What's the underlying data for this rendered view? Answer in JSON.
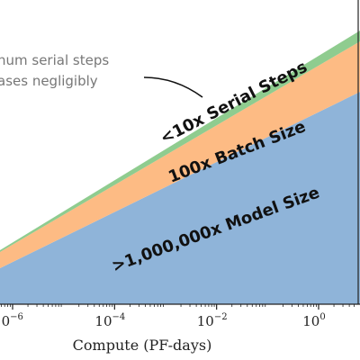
{
  "chart_data": {
    "type": "area",
    "xlabel": "Compute (PF-days)",
    "x_scale": "log",
    "x_ticks": [
      {
        "base": "10",
        "exp": "−6",
        "value": 1e-06
      },
      {
        "base": "10",
        "exp": "−4",
        "value": 0.0001
      },
      {
        "base": "10",
        "exp": "−2",
        "value": 0.01
      },
      {
        "base": "10",
        "exp": "0",
        "value": 1
      }
    ],
    "colors": {
      "model_size": "#8fb4d9",
      "batch_size": "#fdbb84",
      "serial_steps": "#8fcc8f"
    },
    "series": [
      {
        "name": ">1,000,000x Model Size"
      },
      {
        "name": "100x Batch Size"
      },
      {
        "name": "<10x Serial Steps"
      }
    ],
    "annotation": {
      "lines": [
        "num serial steps",
        "ases negligibly"
      ]
    }
  }
}
